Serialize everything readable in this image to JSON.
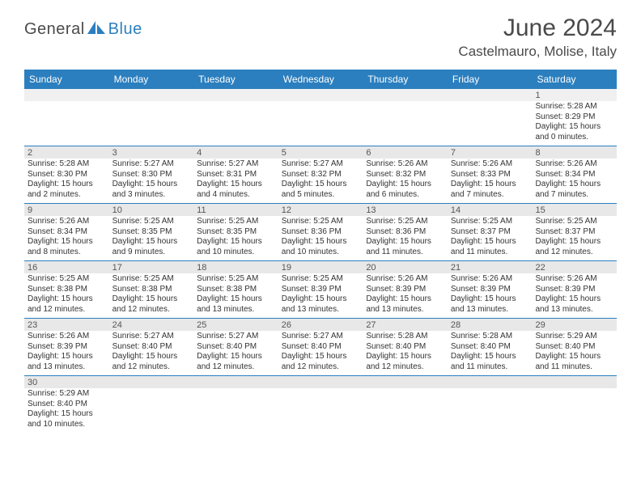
{
  "logo": {
    "text1": "General",
    "text2": "Blue"
  },
  "title": "June 2024",
  "location": "Castelmauro, Molise, Italy",
  "colors": {
    "header_bg": "#2b7fbf",
    "header_text": "#ffffff",
    "shade_bg": "#e8e8e8",
    "border": "#2b7fbf",
    "text": "#333333"
  },
  "dayNames": [
    "Sunday",
    "Monday",
    "Tuesday",
    "Wednesday",
    "Thursday",
    "Friday",
    "Saturday"
  ],
  "weeks": [
    [
      {
        "n": "",
        "sr": "",
        "ss": "",
        "dl": ""
      },
      {
        "n": "",
        "sr": "",
        "ss": "",
        "dl": ""
      },
      {
        "n": "",
        "sr": "",
        "ss": "",
        "dl": ""
      },
      {
        "n": "",
        "sr": "",
        "ss": "",
        "dl": ""
      },
      {
        "n": "",
        "sr": "",
        "ss": "",
        "dl": ""
      },
      {
        "n": "",
        "sr": "",
        "ss": "",
        "dl": ""
      },
      {
        "n": "1",
        "sr": "Sunrise: 5:28 AM",
        "ss": "Sunset: 8:29 PM",
        "dl": "Daylight: 15 hours and 0 minutes."
      }
    ],
    [
      {
        "n": "2",
        "sr": "Sunrise: 5:28 AM",
        "ss": "Sunset: 8:30 PM",
        "dl": "Daylight: 15 hours and 2 minutes."
      },
      {
        "n": "3",
        "sr": "Sunrise: 5:27 AM",
        "ss": "Sunset: 8:30 PM",
        "dl": "Daylight: 15 hours and 3 minutes."
      },
      {
        "n": "4",
        "sr": "Sunrise: 5:27 AM",
        "ss": "Sunset: 8:31 PM",
        "dl": "Daylight: 15 hours and 4 minutes."
      },
      {
        "n": "5",
        "sr": "Sunrise: 5:27 AM",
        "ss": "Sunset: 8:32 PM",
        "dl": "Daylight: 15 hours and 5 minutes."
      },
      {
        "n": "6",
        "sr": "Sunrise: 5:26 AM",
        "ss": "Sunset: 8:32 PM",
        "dl": "Daylight: 15 hours and 6 minutes."
      },
      {
        "n": "7",
        "sr": "Sunrise: 5:26 AM",
        "ss": "Sunset: 8:33 PM",
        "dl": "Daylight: 15 hours and 7 minutes."
      },
      {
        "n": "8",
        "sr": "Sunrise: 5:26 AM",
        "ss": "Sunset: 8:34 PM",
        "dl": "Daylight: 15 hours and 7 minutes."
      }
    ],
    [
      {
        "n": "9",
        "sr": "Sunrise: 5:26 AM",
        "ss": "Sunset: 8:34 PM",
        "dl": "Daylight: 15 hours and 8 minutes."
      },
      {
        "n": "10",
        "sr": "Sunrise: 5:25 AM",
        "ss": "Sunset: 8:35 PM",
        "dl": "Daylight: 15 hours and 9 minutes."
      },
      {
        "n": "11",
        "sr": "Sunrise: 5:25 AM",
        "ss": "Sunset: 8:35 PM",
        "dl": "Daylight: 15 hours and 10 minutes."
      },
      {
        "n": "12",
        "sr": "Sunrise: 5:25 AM",
        "ss": "Sunset: 8:36 PM",
        "dl": "Daylight: 15 hours and 10 minutes."
      },
      {
        "n": "13",
        "sr": "Sunrise: 5:25 AM",
        "ss": "Sunset: 8:36 PM",
        "dl": "Daylight: 15 hours and 11 minutes."
      },
      {
        "n": "14",
        "sr": "Sunrise: 5:25 AM",
        "ss": "Sunset: 8:37 PM",
        "dl": "Daylight: 15 hours and 11 minutes."
      },
      {
        "n": "15",
        "sr": "Sunrise: 5:25 AM",
        "ss": "Sunset: 8:37 PM",
        "dl": "Daylight: 15 hours and 12 minutes."
      }
    ],
    [
      {
        "n": "16",
        "sr": "Sunrise: 5:25 AM",
        "ss": "Sunset: 8:38 PM",
        "dl": "Daylight: 15 hours and 12 minutes."
      },
      {
        "n": "17",
        "sr": "Sunrise: 5:25 AM",
        "ss": "Sunset: 8:38 PM",
        "dl": "Daylight: 15 hours and 12 minutes."
      },
      {
        "n": "18",
        "sr": "Sunrise: 5:25 AM",
        "ss": "Sunset: 8:38 PM",
        "dl": "Daylight: 15 hours and 13 minutes."
      },
      {
        "n": "19",
        "sr": "Sunrise: 5:25 AM",
        "ss": "Sunset: 8:39 PM",
        "dl": "Daylight: 15 hours and 13 minutes."
      },
      {
        "n": "20",
        "sr": "Sunrise: 5:26 AM",
        "ss": "Sunset: 8:39 PM",
        "dl": "Daylight: 15 hours and 13 minutes."
      },
      {
        "n": "21",
        "sr": "Sunrise: 5:26 AM",
        "ss": "Sunset: 8:39 PM",
        "dl": "Daylight: 15 hours and 13 minutes."
      },
      {
        "n": "22",
        "sr": "Sunrise: 5:26 AM",
        "ss": "Sunset: 8:39 PM",
        "dl": "Daylight: 15 hours and 13 minutes."
      }
    ],
    [
      {
        "n": "23",
        "sr": "Sunrise: 5:26 AM",
        "ss": "Sunset: 8:39 PM",
        "dl": "Daylight: 15 hours and 13 minutes."
      },
      {
        "n": "24",
        "sr": "Sunrise: 5:27 AM",
        "ss": "Sunset: 8:40 PM",
        "dl": "Daylight: 15 hours and 12 minutes."
      },
      {
        "n": "25",
        "sr": "Sunrise: 5:27 AM",
        "ss": "Sunset: 8:40 PM",
        "dl": "Daylight: 15 hours and 12 minutes."
      },
      {
        "n": "26",
        "sr": "Sunrise: 5:27 AM",
        "ss": "Sunset: 8:40 PM",
        "dl": "Daylight: 15 hours and 12 minutes."
      },
      {
        "n": "27",
        "sr": "Sunrise: 5:28 AM",
        "ss": "Sunset: 8:40 PM",
        "dl": "Daylight: 15 hours and 12 minutes."
      },
      {
        "n": "28",
        "sr": "Sunrise: 5:28 AM",
        "ss": "Sunset: 8:40 PM",
        "dl": "Daylight: 15 hours and 11 minutes."
      },
      {
        "n": "29",
        "sr": "Sunrise: 5:29 AM",
        "ss": "Sunset: 8:40 PM",
        "dl": "Daylight: 15 hours and 11 minutes."
      }
    ],
    [
      {
        "n": "30",
        "sr": "Sunrise: 5:29 AM",
        "ss": "Sunset: 8:40 PM",
        "dl": "Daylight: 15 hours and 10 minutes."
      },
      {
        "n": "",
        "sr": "",
        "ss": "",
        "dl": ""
      },
      {
        "n": "",
        "sr": "",
        "ss": "",
        "dl": ""
      },
      {
        "n": "",
        "sr": "",
        "ss": "",
        "dl": ""
      },
      {
        "n": "",
        "sr": "",
        "ss": "",
        "dl": ""
      },
      {
        "n": "",
        "sr": "",
        "ss": "",
        "dl": ""
      },
      {
        "n": "",
        "sr": "",
        "ss": "",
        "dl": ""
      }
    ]
  ]
}
